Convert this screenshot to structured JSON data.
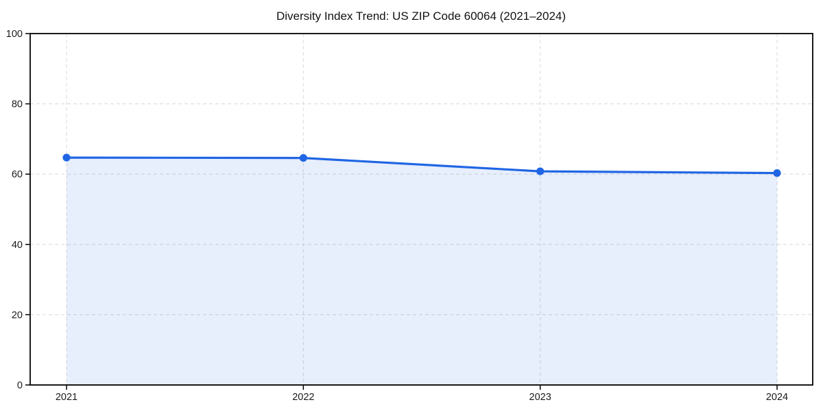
{
  "chart_data": {
    "type": "area",
    "title": "Diversity Index Trend: US ZIP Code 60064 (2021–2024)",
    "categories": [
      "2021",
      "2022",
      "2023",
      "2024"
    ],
    "series": [
      {
        "name": "Diversity Index",
        "values": [
          64.7,
          64.6,
          60.8,
          60.3
        ]
      }
    ],
    "xlabel": "",
    "ylabel": "",
    "ylim": [
      0,
      100
    ],
    "yticks": [
      0,
      20,
      40,
      60,
      80,
      100
    ],
    "grid": true,
    "grid_style": "dashed",
    "legend": false,
    "marker": "circle",
    "colors": {
      "line": "#2066e4",
      "marker": "#2066e4",
      "fill": "#2066e4",
      "fill_opacity": 0.11,
      "grid": "#dcdcdc",
      "spine": "#000000",
      "text": "#1a1a1a",
      "background": "#ffffff"
    }
  }
}
